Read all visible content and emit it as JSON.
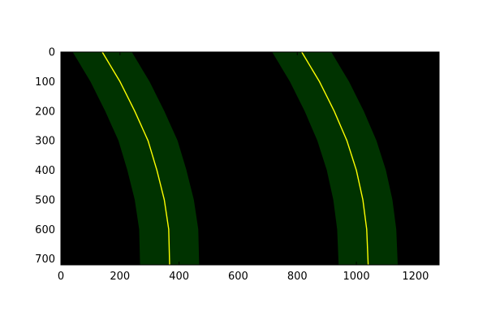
{
  "chart_data": {
    "type": "image",
    "title": "",
    "xlabel": "",
    "ylabel": "",
    "xlim": [
      0,
      1280
    ],
    "ylim": [
      720,
      0
    ],
    "x_ticks": [
      0,
      200,
      400,
      600,
      800,
      1000,
      1200
    ],
    "y_ticks": [
      0,
      100,
      200,
      300,
      400,
      500,
      600,
      700
    ],
    "x_tick_labels": [
      "0",
      "200",
      "400",
      "600",
      "800",
      "1000",
      "1200"
    ],
    "y_tick_labels": [
      "0",
      "100",
      "200",
      "300",
      "400",
      "500",
      "600",
      "700"
    ],
    "background_color": "#000000",
    "lane_band_color": "#003300",
    "fit_line_color": "#ffff00",
    "lanes": [
      {
        "fit_points": {
          "y": [
            0,
            100,
            200,
            300,
            400,
            500,
            600,
            720
          ],
          "x": [
            140,
            200,
            250,
            295,
            325,
            350,
            365,
            368
          ]
        },
        "band_halfwidth": 100
      },
      {
        "fit_points": {
          "y": [
            0,
            100,
            200,
            300,
            400,
            500,
            600,
            720
          ],
          "x": [
            815,
            875,
            925,
            968,
            1000,
            1022,
            1035,
            1040
          ]
        },
        "band_halfwidth": 100
      }
    ],
    "grid": false
  }
}
